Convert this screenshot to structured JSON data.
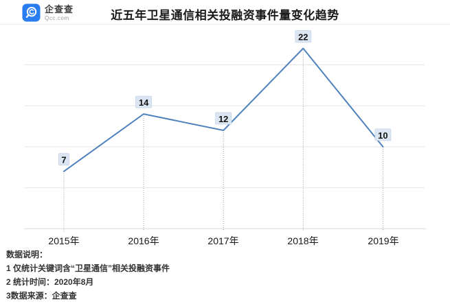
{
  "header": {
    "logo": {
      "name": "企查查",
      "domain": "Qcc.com",
      "brand_color": "#2a7df0"
    },
    "title": "近五年卫星通信相关投融资事件量变化趋势"
  },
  "chart_data": {
    "type": "line",
    "categories": [
      "2015年",
      "2016年",
      "2017年",
      "2018年",
      "2019年"
    ],
    "values": [
      7,
      14,
      12,
      22,
      10
    ],
    "title": "近五年卫星通信相关投融资事件量变化趋势",
    "xlabel": "",
    "ylabel": "",
    "ylim": [
      0,
      25
    ],
    "gridline_values": [
      5,
      10,
      15,
      20,
      25
    ],
    "grid": true,
    "legend": false,
    "data_labels": true,
    "colors": {
      "line": "#4f81bd",
      "label_box_bg": "#dce6f2",
      "label_box_border": "#c3d4ea",
      "label_text": "#141414",
      "gridline": "#e4e4e4",
      "axis": "#d7d7d7",
      "drop_line": "#9a9a9a"
    }
  },
  "footnotes": {
    "heading": "数据说明：",
    "items": [
      "1 仅统计关键词含“卫星通信”相关投融资事件",
      "2 统计时间：2020年8月",
      "3数据来源：企查查"
    ]
  }
}
